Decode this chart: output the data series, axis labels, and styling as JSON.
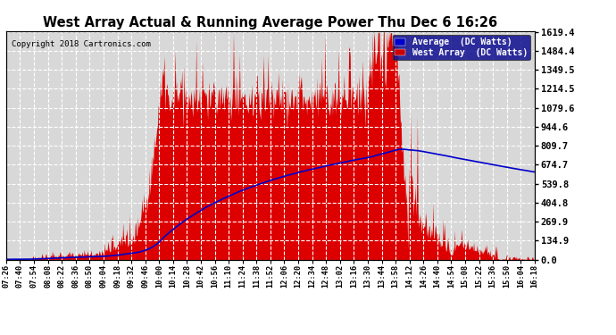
{
  "title": "West Array Actual & Running Average Power Thu Dec 6 16:26",
  "copyright": "Copyright 2018 Cartronics.com",
  "legend_labels": [
    "Average  (DC Watts)",
    "West Array  (DC Watts)"
  ],
  "legend_colors": [
    "#0000cc",
    "#cc0000"
  ],
  "ylabel_right_ticks": [
    0.0,
    134.9,
    269.9,
    404.8,
    539.8,
    674.7,
    809.7,
    944.6,
    1079.6,
    1214.5,
    1349.5,
    1484.4,
    1619.4
  ],
  "ymin": 0.0,
  "ymax": 1619.4,
  "background_color": "#ffffff",
  "plot_bg_color": "#d8d8d8",
  "grid_color": "#ffffff",
  "bar_color": "#dd0000",
  "line_color": "#0000cc",
  "x_tick_labels": [
    "07:26",
    "07:40",
    "07:54",
    "08:08",
    "08:22",
    "08:36",
    "08:50",
    "09:04",
    "09:18",
    "09:32",
    "09:46",
    "10:00",
    "10:14",
    "10:28",
    "10:42",
    "10:56",
    "11:10",
    "11:24",
    "11:38",
    "11:52",
    "12:06",
    "12:20",
    "12:34",
    "12:48",
    "13:02",
    "13:16",
    "13:30",
    "13:44",
    "13:58",
    "14:12",
    "14:26",
    "14:40",
    "14:54",
    "15:08",
    "15:22",
    "15:36",
    "15:50",
    "16:04",
    "16:18"
  ],
  "n_points": 780
}
